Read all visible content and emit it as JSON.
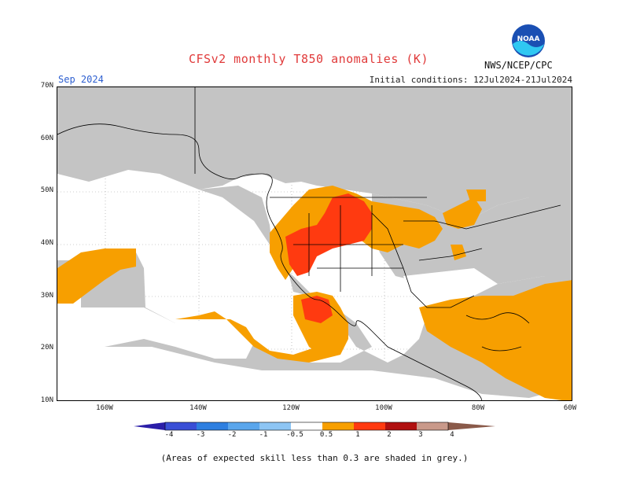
{
  "header": {
    "title": "CFSv2 monthly T850 anomalies (K)",
    "month": "Sep 2024",
    "initial_conditions": "Initial conditions: 12Jul2024-21Jul2024",
    "agency": "NWS/NCEP/CPC",
    "logo_text": "NOAA"
  },
  "axes": {
    "lat_labels": [
      "70N",
      "60N",
      "50N",
      "40N",
      "30N",
      "20N",
      "10N"
    ],
    "lon_labels": [
      "160W",
      "140W",
      "120W",
      "100W",
      "80W",
      "60W"
    ]
  },
  "colorbar": {
    "labels": [
      "-4",
      "-3",
      "-2",
      "-1",
      "-0.5",
      "0.5",
      "1",
      "2",
      "3",
      "4"
    ],
    "colors": [
      "#2b1ea8",
      "#3a4fd6",
      "#2e7fe0",
      "#5aa6ec",
      "#8dc5f4",
      "#ffffff",
      "#f79f00",
      "#ff3a10",
      "#b01010",
      "#c9998a",
      "#8a5a4a"
    ]
  },
  "legend_note": "(Areas of expected skill less than 0.3 are shaded in grey.)",
  "colors": {
    "grey": "#c4c4c4",
    "orange": "#f79f00",
    "red": "#ff3a10",
    "land_line": "#000000"
  }
}
